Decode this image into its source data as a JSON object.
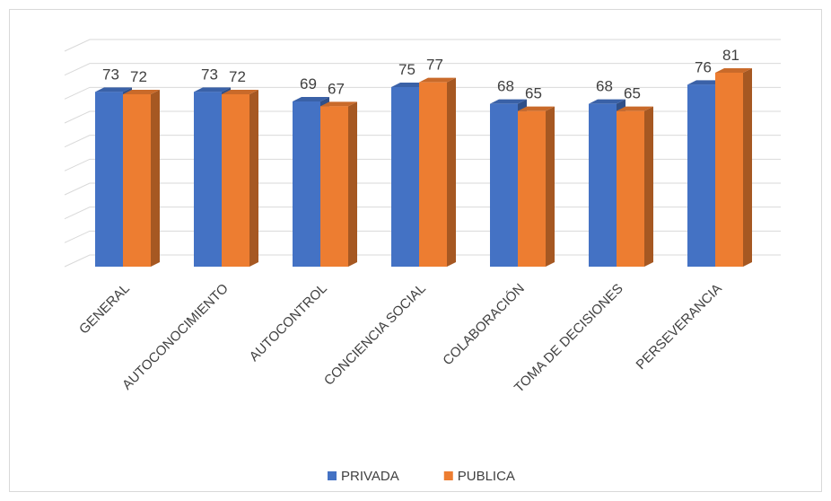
{
  "chart_data": {
    "type": "bar3d",
    "categories": [
      "GENERAL",
      "AUTOCONOCIMIENTO",
      "AUTOCONTROL",
      "CONCIENCIA SOCIAL",
      "COLABORACIÓN",
      "TOMA DE DECISIONES",
      "PERSEVERANCIA"
    ],
    "series": [
      {
        "name": "PRIVADA",
        "color": "#4472c4",
        "values": [
          73,
          73,
          69,
          75,
          68,
          68,
          76
        ]
      },
      {
        "name": "PUBLICA",
        "color": "#ed7d31",
        "values": [
          72,
          72,
          67,
          77,
          65,
          65,
          81
        ]
      }
    ],
    "ylim": [
      0,
      90
    ],
    "yticks": [
      0,
      10,
      20,
      30,
      40,
      50,
      60,
      70,
      80,
      90
    ],
    "grid": true,
    "legend": "bottom"
  }
}
